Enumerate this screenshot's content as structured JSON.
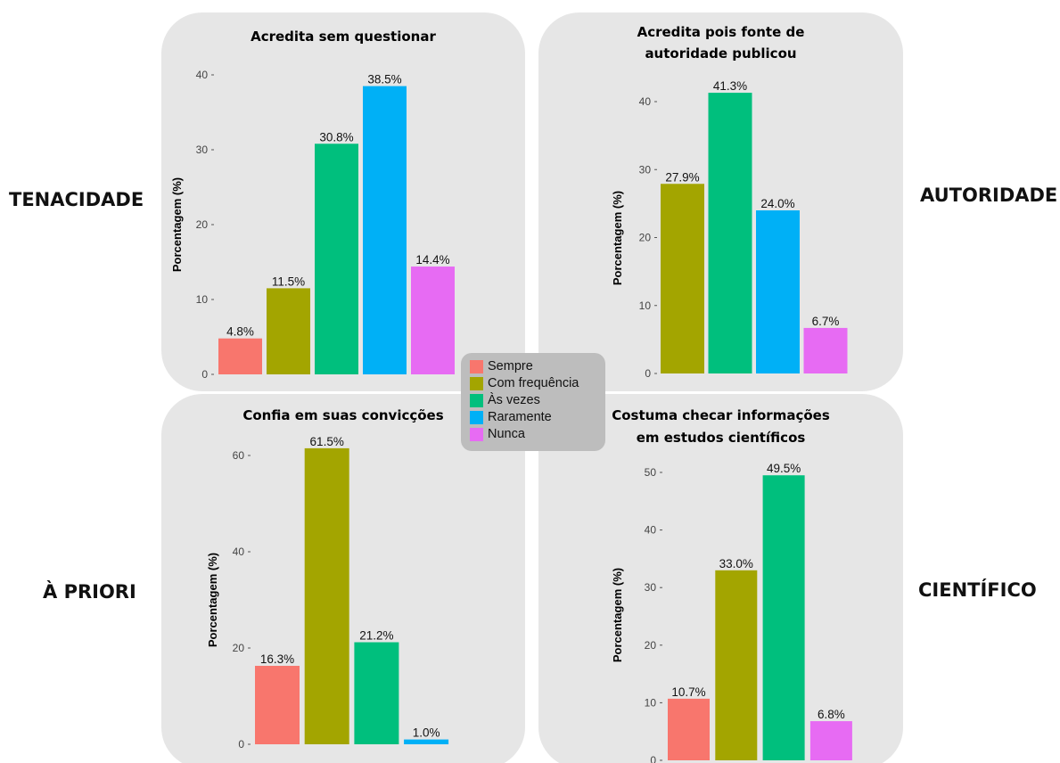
{
  "side_labels": {
    "top_left": "TENACIDADE",
    "top_right": "AUTORIDADE",
    "bottom_left": "À PRIORI",
    "bottom_right": "CIENTÍFICO"
  },
  "legend": [
    {
      "label": "Sempre",
      "color": "#f8766d"
    },
    {
      "label": "Com frequência",
      "color": "#a3a500"
    },
    {
      "label": "Às vezes",
      "color": "#00bf7d"
    },
    {
      "label": "Raramente",
      "color": "#00b0f6"
    },
    {
      "label": "Nunca",
      "color": "#e76bf3"
    }
  ],
  "chart_data": [
    {
      "type": "bar",
      "title": [
        "Acredita sem questionar"
      ],
      "ylabel": "Porcentagem (%)",
      "categories": [
        "Sempre",
        "Com frequência",
        "Às vezes",
        "Raramente",
        "Nunca"
      ],
      "values": [
        4.8,
        11.5,
        30.8,
        38.5,
        14.4
      ],
      "labels": [
        "4.8%",
        "11.5%",
        "30.8%",
        "38.5%",
        "14.4%"
      ],
      "yticks": [
        0,
        10,
        20,
        30,
        40
      ],
      "ylim": [
        0,
        40
      ]
    },
    {
      "type": "bar",
      "title": [
        "Acredita pois fonte de",
        "autoridade publicou"
      ],
      "ylabel": "Porcentagem (%)",
      "categories": [
        "Com frequência",
        "Às vezes",
        "Raramente",
        "Nunca"
      ],
      "values": [
        27.9,
        41.3,
        24.0,
        6.7
      ],
      "labels": [
        "27.9%",
        "41.3%",
        "24.0%",
        "6.7%"
      ],
      "yticks": [
        0,
        10,
        20,
        30,
        40
      ],
      "ylim": [
        0,
        40
      ]
    },
    {
      "type": "bar",
      "title": [
        "Confia em suas convicções"
      ],
      "ylabel": "Porcentagem (%)",
      "categories": [
        "Sempre",
        "Com frequência",
        "Às vezes",
        "Raramente"
      ],
      "values": [
        16.3,
        61.5,
        21.2,
        1.0
      ],
      "labels": [
        "16.3%",
        "61.5%",
        "21.2%",
        "1.0%"
      ],
      "yticks": [
        0,
        20,
        40,
        60
      ],
      "ylim": [
        0,
        60
      ]
    },
    {
      "type": "bar",
      "title": [
        "Costuma checar informações",
        "em estudos científicos"
      ],
      "ylabel": "Porcentagem (%)",
      "categories": [
        "Sempre",
        "Com frequência",
        "Às vezes",
        "Nunca"
      ],
      "values": [
        10.7,
        33.0,
        49.5,
        6.8
      ],
      "labels": [
        "10.7%",
        "33.0%",
        "49.5%",
        "6.8%"
      ],
      "yticks": [
        0,
        10,
        20,
        30,
        40,
        50
      ],
      "ylim": [
        0,
        50
      ]
    }
  ]
}
